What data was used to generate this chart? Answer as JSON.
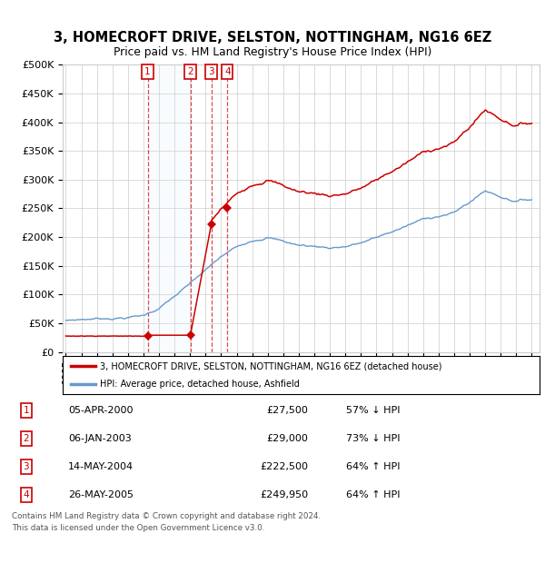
{
  "title": "3, HOMECROFT DRIVE, SELSTON, NOTTINGHAM, NG16 6EZ",
  "subtitle": "Price paid vs. HM Land Registry's House Price Index (HPI)",
  "legend_line1": "3, HOMECROFT DRIVE, SELSTON, NOTTINGHAM, NG16 6EZ (detached house)",
  "legend_line2": "HPI: Average price, detached house, Ashfield",
  "footer1": "Contains HM Land Registry data © Crown copyright and database right 2024.",
  "footer2": "This data is licensed under the Open Government Licence v3.0.",
  "sale_markers": [
    {
      "num": "1",
      "date": "05-APR-2000",
      "price": "£27,500",
      "pct": "57% ↓ HPI",
      "year": 2000.27,
      "price_val": 27500
    },
    {
      "num": "2",
      "date": "06-JAN-2003",
      "price": "£29,000",
      "pct": "73% ↓ HPI",
      "year": 2003.02,
      "price_val": 29000
    },
    {
      "num": "3",
      "date": "14-MAY-2004",
      "price": "£222,500",
      "pct": "64% ↑ HPI",
      "year": 2004.37,
      "price_val": 222500
    },
    {
      "num": "4",
      "date": "26-MAY-2005",
      "price": "£249,950",
      "pct": "64% ↑ HPI",
      "year": 2005.4,
      "price_val": 249950
    }
  ],
  "red_color": "#cc0000",
  "blue_color": "#6699cc",
  "grid_color": "#cccccc",
  "shade_color": "#ddeeff",
  "ylim": [
    0,
    500000
  ],
  "yticks": [
    0,
    50000,
    100000,
    150000,
    200000,
    250000,
    300000,
    350000,
    400000,
    450000,
    500000
  ],
  "ytick_labels": [
    "£0",
    "£50K",
    "£100K",
    "£150K",
    "£200K",
    "£250K",
    "£300K",
    "£350K",
    "£400K",
    "£450K",
    "£500K"
  ],
  "xmin": 1994.8,
  "xmax": 2025.5
}
